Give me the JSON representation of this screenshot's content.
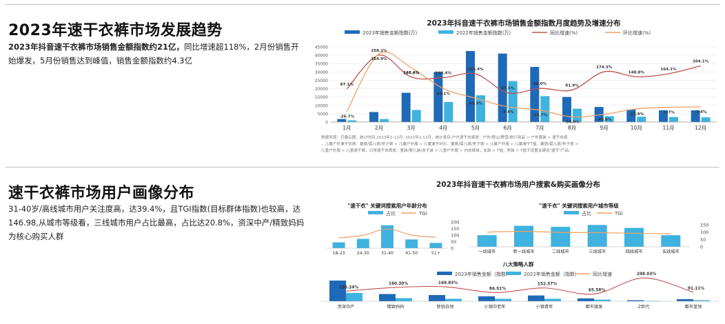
{
  "section1": {
    "title": "2023年速干衣裤市场发展趋势",
    "lead_bold": "2023年抖音速干衣裤市场销售金额指数约21亿，",
    "lead_rest": "同比增速超118%，2月份销售开始爆发，5月份销售达到峰值，销售金额指数约4.3亿"
  },
  "section2": {
    "title": "速干衣裤市场用户画像分布",
    "lead": "31-40岁/高线城市用户关注度高，达39.4%，且TGI指数(目标群体指数)也较高，达146.98,从城市等级看，三线城市用户占比最高，占比达20.8%，资深中产/精致妈妈为核心购买人群"
  },
  "colors": {
    "dark_blue": "#1f6ab8",
    "light_blue": "#3fb2e0",
    "red": "#c0504d",
    "orange": "#f0a060",
    "grid": "#e6e6e6"
  },
  "chart_data": [
    {
      "type": "bar",
      "title": "2023年抖音速干衣裤市场销售金额指数月度趋势及增速分布",
      "categories": [
        "1月",
        "2月",
        "3月",
        "4月",
        "5月",
        "6月",
        "7月",
        "8月",
        "9月",
        "10月",
        "11月",
        "12月"
      ],
      "series": [
        {
          "name": "2023年销售金额指数(万)",
          "values": [
            1800,
            6000,
            17500,
            30000,
            42500,
            41000,
            33000,
            15000,
            9000,
            7500,
            7000,
            7000
          ]
        },
        {
          "name": "2022年销售金额指数(万)",
          "values": [
            1000,
            1800,
            7200,
            12000,
            16000,
            24500,
            15500,
            8000,
            3500,
            3200,
            3000,
            2800
          ]
        },
        {
          "name": "同比增速(%)",
          "kind": "line",
          "values": [
            87.1,
            258.1,
            147.4,
            144.4,
            163.4,
            67.5,
            90.0,
            81.9,
            174.3,
            148.8,
            164.1,
            204.1
          ]
        },
        {
          "name": "环比增速(%)",
          "kind": "line",
          "values": [
            -26.7,
            264.9,
            194.5,
            89.1,
            40.3,
            -3.4,
            -19.7,
            -54.0,
            -40.8,
            -13.9,
            -5.7,
            -3.4
          ]
        }
      ],
      "yticks": [
        "45000",
        "40000",
        "35000",
        "30000",
        "25000",
        "20000",
        "15000",
        "10000",
        "5000",
        "0"
      ],
      "ylim": [
        0,
        45000
      ],
      "yoy_labels": [
        "87.1%",
        "258.1%",
        "147.4%",
        "144.4%",
        "163.4%",
        "67.5%",
        "90.0%",
        "81.9%",
        "174.3%",
        "148.8%",
        "164.1%",
        "204.1%"
      ],
      "mom_labels": [
        "-26.7%",
        "264.9%",
        "194.5%",
        "89.1%",
        "40.3%",
        "-3.4%",
        "-19.7%",
        "-54.0%",
        "-40.8%",
        "-13.9%",
        "-5.7%",
        "-3.4%"
      ],
      "note": "数据来源：巨量云图，统计时间:2023年1-12月, 2022年1-12月，统计类目:户外速干衣裤类：户外/登山/野营/旅行用品 > 户外服装 > 速干衣裤，儿童户外速干衣裤：童装/婴儿装/亲子装 > 儿童户外服 > 儿童速干衬衫，童装/婴儿装/亲子装 > 儿童户外服 > 儿童速干T恤，童装/婴儿装/亲子装 > 儿童户外服 > 儿童速干裤，日常速干衣裤类：童装/婴儿装/亲子装 > 儿童户外服 > 内衣裤袜，女装 > T恤，男装 > T恤下设置关键词\"速干\"产品。"
    },
    {
      "type": "bar",
      "title": "2023年抖音速干衣裤市场用户搜索&购买画像分布",
      "subtitle": "\"速干衣\" 关键词搜索用户年龄分布",
      "categories": [
        "18-23",
        "24-30",
        "31-40",
        "41-50",
        "51+"
      ],
      "series": [
        {
          "name": "占比",
          "values": [
            10,
            16,
            39.4,
            15,
            9
          ]
        },
        {
          "name": "TGI",
          "kind": "line",
          "values": [
            78,
            98,
            146.98,
            100,
            82
          ]
        }
      ],
      "yticks": [
        "200",
        "150",
        "100",
        "50",
        "0"
      ],
      "ylim": [
        0,
        200
      ]
    },
    {
      "type": "bar",
      "subtitle": "\"速干衣\" 关键词搜索用户城市等级",
      "categories": [
        "一线城市",
        "新一线城市",
        "二线城市",
        "三线城市",
        "四线城市",
        "五线城市"
      ],
      "series": [
        {
          "name": "占比",
          "values": [
            11,
            20,
            19,
            20.8,
            18,
            11
          ]
        },
        {
          "name": "TGI",
          "kind": "line",
          "values": [
            100,
            105,
            98,
            96,
            92,
            88
          ]
        }
      ],
      "yticks": [
        "150",
        "100",
        "50",
        "0"
      ],
      "ylim": [
        0,
        150
      ]
    },
    {
      "type": "bar",
      "subtitle": "八大策略人群",
      "categories": [
        "资深中产",
        "精致妈妈",
        "新锐白领",
        "小镇中老年",
        "小镇青年",
        "都市银发",
        "Z世代",
        "都市蓝领"
      ],
      "series": [
        {
          "name": "2023年销售金额（指数）",
          "values": [
            100,
            35,
            30,
            24,
            28,
            14,
            5,
            10
          ]
        },
        {
          "name": "2022年销售金额（指数）",
          "values": [
            40,
            15,
            12,
            12,
            12,
            8,
            2,
            5
          ]
        },
        {
          "name": "同比增速",
          "kind": "line",
          "values": [
            106.24,
            160.3,
            169.83,
            86.51,
            152.57,
            65.58,
            298.03,
            91.11
          ]
        }
      ],
      "growth_labels": [
        "106.24%",
        "160.30%",
        "169.83%",
        "86.51%",
        "152.57%",
        "65.58%",
        "298.03%",
        "91.11%"
      ]
    }
  ]
}
